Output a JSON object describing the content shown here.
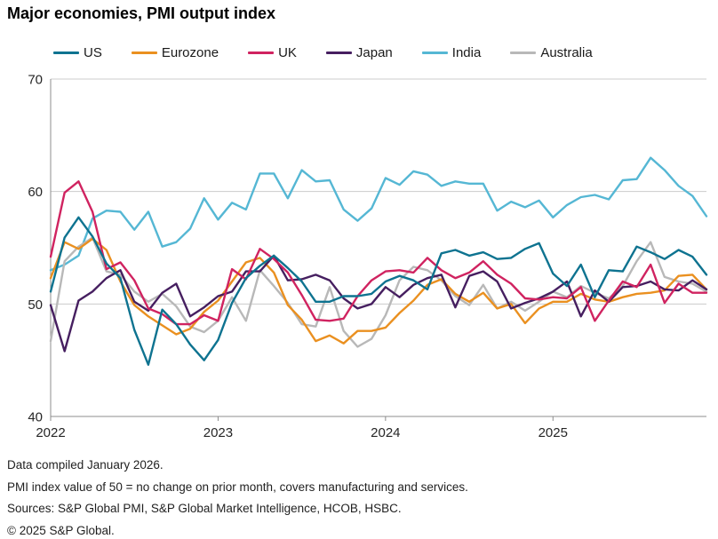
{
  "title": "Major economies, PMI output index",
  "legend": {
    "items": [
      {
        "label": "US",
        "color": "#0e7390"
      },
      {
        "label": "Eurozone",
        "color": "#ea9020"
      },
      {
        "label": "UK",
        "color": "#d02360"
      },
      {
        "label": "Japan",
        "color": "#461f60"
      },
      {
        "label": "India",
        "color": "#55b7d4"
      },
      {
        "label": "Australia",
        "color": "#b8b8b8"
      }
    ]
  },
  "chart_data": {
    "type": "line",
    "x_monthly_start": "2022-01",
    "x_monthly_end": "2025-12",
    "x_tick_labels": [
      "2022",
      "2023",
      "2024",
      "2025"
    ],
    "ylim": [
      40,
      70
    ],
    "yticks": [
      70,
      60,
      50,
      40
    ],
    "grid": true,
    "legend_position": "top",
    "series": [
      {
        "name": "US",
        "color": "#0e7390",
        "values": [
          51.1,
          55.9,
          57.7,
          56.0,
          53.6,
          52.3,
          47.7,
          44.6,
          49.5,
          48.2,
          46.4,
          45.0,
          46.8,
          50.1,
          52.3,
          53.4,
          54.3,
          53.2,
          52.0,
          50.2,
          50.2,
          50.7,
          50.7,
          50.9,
          52.0,
          52.5,
          52.1,
          51.3,
          54.5,
          54.8,
          54.3,
          54.6,
          54.0,
          54.1,
          54.9,
          55.4,
          52.7,
          51.6,
          53.5,
          50.6,
          53.0,
          52.9,
          55.1,
          54.6,
          54.0,
          54.8,
          54.2,
          52.6
        ]
      },
      {
        "name": "Eurozone",
        "color": "#ea9020",
        "values": [
          52.3,
          55.5,
          54.9,
          55.8,
          54.8,
          52.0,
          49.9,
          48.9,
          48.1,
          47.3,
          47.8,
          49.3,
          50.3,
          52.0,
          53.7,
          54.1,
          52.8,
          49.9,
          48.6,
          46.7,
          47.2,
          46.5,
          47.6,
          47.6,
          47.9,
          49.2,
          50.3,
          51.7,
          52.2,
          50.9,
          50.2,
          51.0,
          49.6,
          50.0,
          48.3,
          49.6,
          50.2,
          50.2,
          50.9,
          50.4,
          50.2,
          50.6,
          50.9,
          51.0,
          51.2,
          52.5,
          52.6,
          51.3
        ]
      },
      {
        "name": "UK",
        "color": "#d02360",
        "values": [
          54.2,
          59.9,
          60.9,
          58.2,
          53.1,
          53.7,
          52.1,
          49.6,
          49.1,
          48.2,
          48.2,
          49.0,
          48.5,
          53.1,
          52.2,
          54.9,
          54.0,
          52.8,
          50.8,
          48.6,
          48.5,
          48.7,
          50.7,
          52.1,
          52.9,
          53.0,
          52.8,
          54.1,
          53.0,
          52.3,
          52.8,
          53.8,
          52.6,
          51.8,
          50.5,
          50.4,
          50.6,
          50.5,
          51.5,
          48.5,
          50.3,
          52.0,
          51.5,
          53.5,
          50.1,
          51.8,
          51.0,
          51.0
        ]
      },
      {
        "name": "Japan",
        "color": "#461f60",
        "values": [
          49.9,
          45.8,
          50.3,
          51.1,
          52.3,
          53.0,
          50.2,
          49.4,
          51.0,
          51.8,
          48.9,
          49.7,
          50.7,
          51.1,
          52.9,
          52.9,
          54.3,
          52.1,
          52.2,
          52.6,
          52.1,
          50.5,
          49.6,
          50.0,
          51.5,
          50.6,
          51.7,
          52.3,
          52.6,
          49.7,
          52.5,
          52.9,
          52.0,
          49.6,
          50.1,
          50.5,
          51.1,
          52.0,
          48.9,
          51.2,
          50.2,
          51.5,
          51.6,
          52.0,
          51.3,
          51.2,
          52.1,
          51.3
        ]
      },
      {
        "name": "India",
        "color": "#55b7d4",
        "values": [
          53.0,
          53.5,
          54.3,
          57.6,
          58.3,
          58.2,
          56.6,
          58.2,
          55.1,
          55.5,
          56.7,
          59.4,
          57.5,
          59.0,
          58.4,
          61.6,
          61.6,
          59.4,
          61.9,
          60.9,
          61.0,
          58.4,
          57.4,
          58.5,
          61.2,
          60.6,
          61.8,
          61.5,
          60.5,
          60.9,
          60.7,
          60.7,
          58.3,
          59.1,
          58.6,
          59.2,
          57.7,
          58.8,
          59.5,
          59.7,
          59.3,
          61.0,
          61.1,
          63.0,
          61.9,
          60.5,
          59.6,
          57.8
        ]
      },
      {
        "name": "Australia",
        "color": "#b8b8b8",
        "values": [
          46.7,
          53.8,
          55.1,
          55.9,
          52.9,
          52.6,
          51.1,
          50.2,
          50.9,
          49.8,
          48.0,
          47.5,
          48.5,
          50.6,
          48.5,
          53.0,
          51.6,
          50.1,
          48.2,
          48.0,
          51.5,
          47.6,
          46.2,
          46.9,
          49.0,
          52.1,
          53.3,
          53.0,
          52.1,
          50.7,
          49.9,
          51.7,
          49.6,
          50.2,
          49.4,
          50.2,
          51.1,
          50.6,
          51.6,
          51.0,
          50.5,
          51.6,
          53.8,
          55.5,
          52.4,
          52.0,
          51.8,
          51.1
        ]
      }
    ],
    "draw_order": [
      "India",
      "Australia",
      "Eurozone",
      "Japan",
      "UK",
      "US"
    ],
    "colors": {
      "grid": "#cccccc",
      "axis": "#8c8c8c",
      "tick_label": "#262626"
    }
  },
  "footer": {
    "line1": "Data compiled January 2026.",
    "line2": "PMI index value of 50 = no change on prior month, covers manufacturing and services.",
    "line3": "Sources: S&P Global PMI, S&P Global Market Intelligence, HCOB, HSBC.",
    "line4": "© 2025 S&P Global."
  }
}
